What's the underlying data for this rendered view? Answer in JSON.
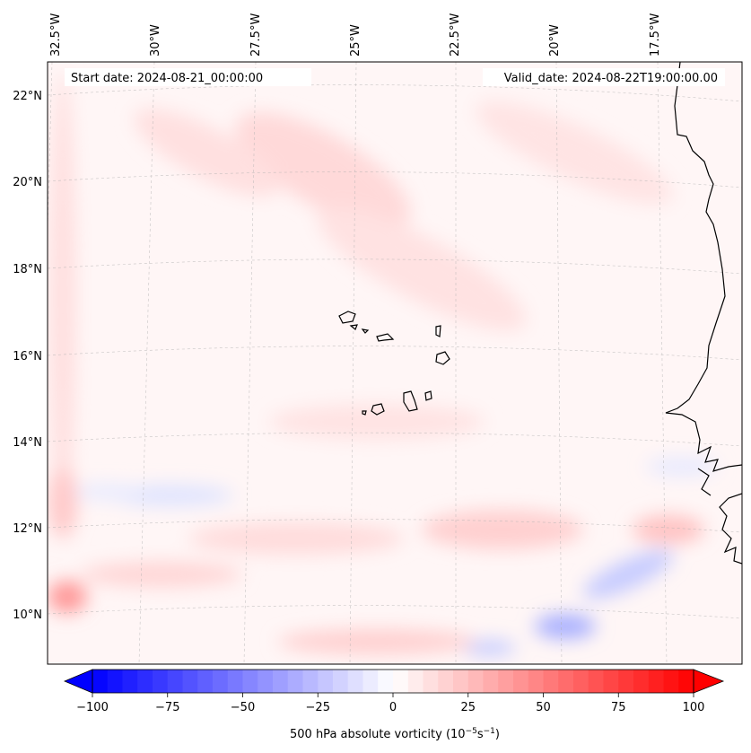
{
  "map": {
    "title_left": "Start date: 2024-08-21_00:00:00",
    "title_right": "Valid_date: 2024-08-22T19:00:00.00",
    "lon_labels": [
      "32.5°W",
      "30°W",
      "27.5°W",
      "25°W",
      "22.5°W",
      "20°W",
      "17.5°W"
    ],
    "lat_labels": [
      "22°N",
      "20°N",
      "18°N",
      "16°N",
      "14°N",
      "12°N",
      "10°N"
    ],
    "colorbar": {
      "ticks": [
        "−100",
        "−75",
        "−50",
        "−25",
        "0",
        "25",
        "50",
        "75",
        "100"
      ],
      "label": "500 hPa absolute vorticity (10",
      "label_exp1": "−5",
      "label_mid": "s",
      "label_exp2": "−1",
      "label_end": ")",
      "min": -100,
      "max": 100,
      "step": 5
    },
    "colors": {
      "negative_max": "#0000ff",
      "neutral": "#ffffff",
      "positive_max": "#ff0000",
      "background_field": "#fff5f5"
    }
  }
}
